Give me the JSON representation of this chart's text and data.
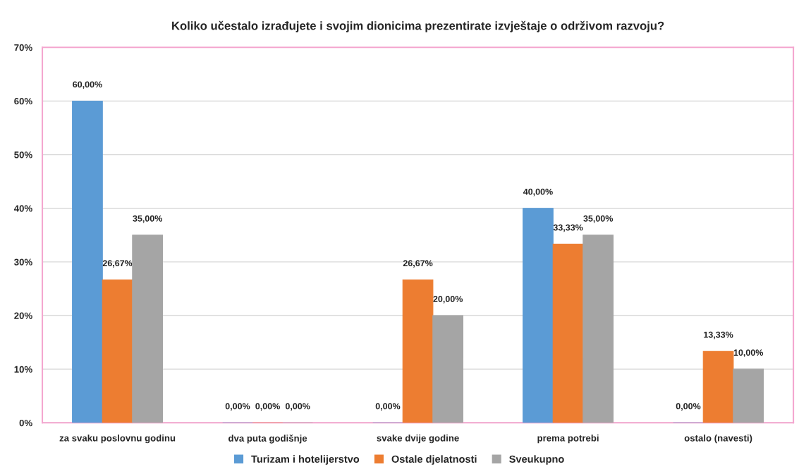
{
  "chart_data": {
    "type": "bar",
    "title": "Koliko učestalo izrađujete i svojim dionicima prezentirate izvještaje o održivom razvoju?",
    "categories": [
      "za svaku poslovnu godinu",
      "dva puta godišnje",
      "svake dvije godine",
      "prema potrebi",
      "ostalo (navesti)"
    ],
    "series": [
      {
        "name": "Turizam i hotelijerstvo",
        "color": "#5b9bd5",
        "values": [
          60,
          0,
          0,
          40,
          0
        ],
        "value_labels": [
          "60,00%",
          "0,00%",
          "0,00%",
          "40,00%",
          "0,00%"
        ]
      },
      {
        "name": "Ostale djelatnosti",
        "color": "#ed7d31",
        "values": [
          26.67,
          0,
          26.67,
          33.33,
          13.33
        ],
        "value_labels": [
          "26,67%",
          "0,00%",
          "26,67%",
          "33,33%",
          "13,33%"
        ]
      },
      {
        "name": "Sveukupno",
        "color": "#a5a5a5",
        "values": [
          35,
          0,
          20,
          35,
          10
        ],
        "value_labels": [
          "35,00%",
          "0,00%",
          "20,00%",
          "35,00%",
          "10,00%"
        ]
      }
    ],
    "ylim": [
      0,
      70
    ],
    "yticks": [
      {
        "value": 0,
        "label": "0%"
      },
      {
        "value": 10,
        "label": "10%"
      },
      {
        "value": 20,
        "label": "20%"
      },
      {
        "value": 30,
        "label": "30%"
      },
      {
        "value": 40,
        "label": "40%"
      },
      {
        "value": 50,
        "label": "50%"
      },
      {
        "value": 60,
        "label": "60%"
      },
      {
        "value": 70,
        "label": "70%"
      }
    ],
    "grid": "y",
    "legend": "bottom"
  }
}
